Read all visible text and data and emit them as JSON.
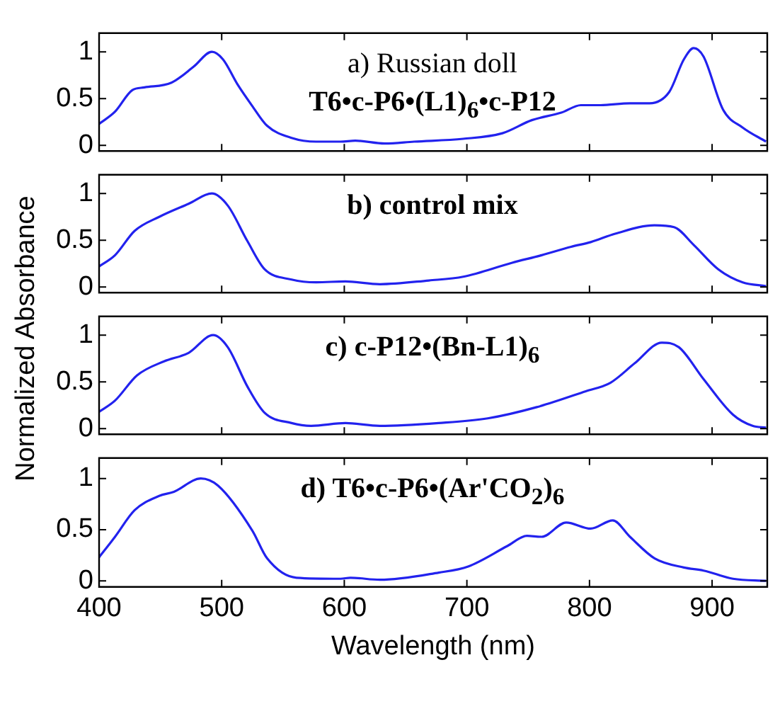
{
  "chart_data": [
    {
      "type": "line",
      "ylabel": "Normalized Absorbance",
      "annotations": [
        "a) Russian doll",
        "T6•c-P6•(L1)$_{6}$•c-P12"
      ],
      "xlim": [
        400,
        945
      ],
      "xticks": [
        400,
        500,
        600,
        700,
        800,
        900
      ],
      "ylim": [
        -0.06,
        1.2
      ],
      "yticks": [
        0,
        0.5,
        1
      ],
      "tick_labels": "y",
      "grid": false,
      "legend": false,
      "series": [
        {
          "color": "#2222ee",
          "x": [
            400,
            413,
            427,
            437,
            459,
            477,
            492,
            501,
            513,
            525,
            537,
            557,
            577,
            597,
            609,
            633,
            657,
            697,
            729,
            753,
            777,
            793,
            809,
            833,
            849,
            865,
            877,
            885,
            893,
            909,
            925,
            944
          ],
          "values": [
            0.23,
            0.36,
            0.59,
            0.62,
            0.67,
            0.84,
            1.0,
            0.92,
            0.65,
            0.42,
            0.21,
            0.08,
            0.04,
            0.04,
            0.05,
            0.02,
            0.04,
            0.07,
            0.13,
            0.27,
            0.35,
            0.43,
            0.43,
            0.45,
            0.45,
            0.57,
            0.92,
            1.04,
            0.95,
            0.38,
            0.19,
            0.04
          ]
        }
      ]
    },
    {
      "type": "line",
      "annotations": [
        "b) control  mix"
      ],
      "xlim": [
        400,
        945
      ],
      "xticks": [
        400,
        500,
        600,
        700,
        800,
        900
      ],
      "ylim": [
        -0.06,
        1.2
      ],
      "yticks": [
        0,
        0.5,
        1
      ],
      "tick_labels": "y",
      "grid": false,
      "legend": false,
      "series": [
        {
          "color": "#2222ee",
          "x": [
            400,
            413,
            429,
            449,
            473,
            492,
            505,
            521,
            535,
            557,
            577,
            601,
            629,
            669,
            697,
            737,
            761,
            785,
            801,
            821,
            853,
            869,
            885,
            905,
            925,
            944
          ],
          "values": [
            0.22,
            0.34,
            0.6,
            0.75,
            0.89,
            1.0,
            0.87,
            0.49,
            0.19,
            0.08,
            0.05,
            0.06,
            0.03,
            0.07,
            0.11,
            0.26,
            0.34,
            0.43,
            0.48,
            0.57,
            0.66,
            0.64,
            0.45,
            0.19,
            0.05,
            0.01
          ]
        }
      ]
    },
    {
      "type": "line",
      "annotations": [
        "c) c-P12•(Bn-L1)$_{6}$"
      ],
      "xlim": [
        400,
        945
      ],
      "xticks": [
        400,
        500,
        600,
        700,
        800,
        900
      ],
      "ylim": [
        -0.06,
        1.2
      ],
      "yticks": [
        0,
        0.5,
        1
      ],
      "tick_labels": "y",
      "grid": false,
      "legend": false,
      "series": [
        {
          "color": "#2222ee",
          "x": [
            400,
            413,
            431,
            453,
            473,
            493,
            505,
            521,
            535,
            557,
            573,
            601,
            629,
            677,
            717,
            757,
            797,
            817,
            837,
            859,
            873,
            893,
            917,
            933,
            944
          ],
          "values": [
            0.18,
            0.3,
            0.57,
            0.72,
            0.81,
            1.0,
            0.87,
            0.45,
            0.17,
            0.06,
            0.03,
            0.06,
            0.03,
            0.06,
            0.11,
            0.23,
            0.4,
            0.49,
            0.7,
            0.92,
            0.87,
            0.53,
            0.15,
            0.03,
            0.01
          ]
        }
      ]
    },
    {
      "type": "line",
      "xlabel": "Wavelength (nm)",
      "annotations": [
        "d) T6•c-P6•(Ar'CO$_{2}$)$_{6}$"
      ],
      "xlim": [
        400,
        945
      ],
      "xticks": [
        400,
        500,
        600,
        700,
        800,
        900
      ],
      "ylim": [
        -0.06,
        1.2
      ],
      "yticks": [
        0,
        0.5,
        1
      ],
      "grid": false,
      "legend": false,
      "series": [
        {
          "color": "#2222ee",
          "x": [
            400,
            413,
            429,
            449,
            461,
            483,
            497,
            525,
            537,
            561,
            597,
            605,
            629,
            677,
            701,
            733,
            749,
            761,
            781,
            801,
            819,
            833,
            853,
            877,
            893,
            917,
            944
          ],
          "values": [
            0.23,
            0.43,
            0.69,
            0.83,
            0.87,
            1.0,
            0.93,
            0.49,
            0.22,
            0.03,
            0.02,
            0.03,
            0.01,
            0.08,
            0.14,
            0.34,
            0.44,
            0.43,
            0.57,
            0.51,
            0.59,
            0.43,
            0.22,
            0.13,
            0.1,
            0.02,
            0
          ]
        }
      ]
    }
  ]
}
